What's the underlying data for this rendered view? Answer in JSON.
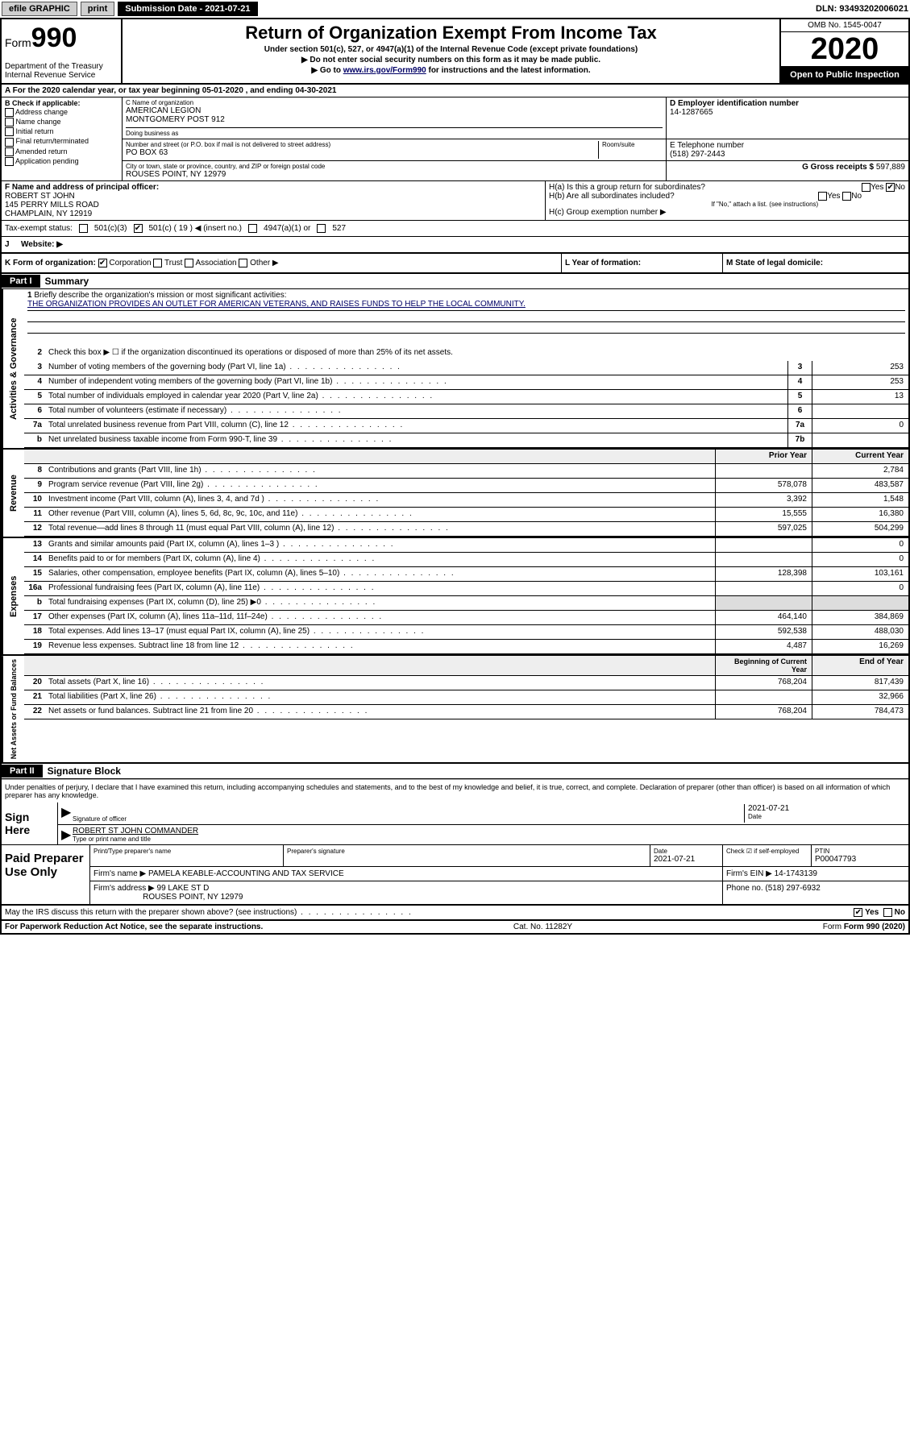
{
  "topbar": {
    "efile": "efile GRAPHIC",
    "print": "print",
    "sub_label": "Submission Date - 2021-07-21",
    "dln": "DLN: 93493202006021"
  },
  "header": {
    "form_label": "Form",
    "form_num": "990",
    "dept": "Department of the Treasury",
    "irs": "Internal Revenue Service",
    "title": "Return of Organization Exempt From Income Tax",
    "sub1": "Under section 501(c), 527, or 4947(a)(1) of the Internal Revenue Code (except private foundations)",
    "sub2": "▶ Do not enter social security numbers on this form as it may be made public.",
    "sub3_pre": "▶ Go to ",
    "sub3_link": "www.irs.gov/Form990",
    "sub3_post": " for instructions and the latest information.",
    "omb": "OMB No. 1545-0047",
    "year": "2020",
    "open": "Open to Public Inspection"
  },
  "period": "A For the 2020 calendar year, or tax year beginning 05-01-2020   , and ending 04-30-2021",
  "colB": {
    "hdr": "B Check if applicable:",
    "opts": [
      "Address change",
      "Name change",
      "Initial return",
      "Final return/terminated",
      "Amended return",
      "Application pending"
    ]
  },
  "colC": {
    "name_hdr": "C Name of organization",
    "name1": "AMERICAN LEGION",
    "name2": "MONTGOMERY POST 912",
    "dba": "Doing business as",
    "addr_hdr": "Number and street (or P.O. box if mail is not delivered to street address)",
    "room": "Room/suite",
    "addr": "PO BOX 63",
    "city_hdr": "City or town, state or province, country, and ZIP or foreign postal code",
    "city": "ROUSES POINT, NY  12979"
  },
  "colD": {
    "ein_hdr": "D Employer identification number",
    "ein": "14-1287665",
    "tel_hdr": "E Telephone number",
    "tel": "(518) 297-2443",
    "gross_hdr": "G Gross receipts $",
    "gross": "597,889"
  },
  "rowF": {
    "hdr": "F Name and address of principal officer:",
    "name": "ROBERT ST JOHN",
    "addr1": "145 PERRY MILLS ROAD",
    "addr2": "CHAMPLAIN, NY  12919"
  },
  "rowH": {
    "ha": "H(a)  Is this a group return for subordinates?",
    "hb": "H(b)  Are all subordinates included?",
    "hb_note": "If \"No,\" attach a list. (see instructions)",
    "hc": "H(c)  Group exemption number ▶",
    "yes": "Yes",
    "no": "No"
  },
  "tax_status": {
    "label": "Tax-exempt status:",
    "opt1": "501(c)(3)",
    "opt2": "501(c) ( 19 ) ◀ (insert no.)",
    "opt3": "4947(a)(1) or",
    "opt4": "527"
  },
  "website": {
    "j": "J",
    "label": "Website: ▶"
  },
  "rowK": {
    "k": "K Form of organization:",
    "corp": "Corporation",
    "trust": "Trust",
    "assoc": "Association",
    "other": "Other ▶",
    "l": "L Year of formation:",
    "m": "M State of legal domicile:"
  },
  "part1": {
    "tag": "Part I",
    "title": "Summary"
  },
  "summary": {
    "q1": "Briefly describe the organization's mission or most significant activities:",
    "mission": "THE ORGANIZATION PROVIDES AN OUTLET FOR AMERICAN VETERANS, AND RAISES FUNDS TO HELP THE LOCAL COMMUNITY.",
    "q2": "Check this box ▶ ☐  if the organization discontinued its operations or disposed of more than 25% of its net assets.",
    "rows_gov": [
      {
        "n": "3",
        "d": "Number of voting members of the governing body (Part VI, line 1a)",
        "b": "3",
        "v": "253"
      },
      {
        "n": "4",
        "d": "Number of independent voting members of the governing body (Part VI, line 1b)",
        "b": "4",
        "v": "253"
      },
      {
        "n": "5",
        "d": "Total number of individuals employed in calendar year 2020 (Part V, line 2a)",
        "b": "5",
        "v": "13"
      },
      {
        "n": "6",
        "d": "Total number of volunteers (estimate if necessary)",
        "b": "6",
        "v": ""
      },
      {
        "n": "7a",
        "d": "Total unrelated business revenue from Part VIII, column (C), line 12",
        "b": "7a",
        "v": "0"
      },
      {
        "n": "b",
        "d": "Net unrelated business taxable income from Form 990-T, line 39",
        "b": "7b",
        "v": ""
      }
    ],
    "col_prior": "Prior Year",
    "col_current": "Current Year",
    "rows_rev": [
      {
        "n": "8",
        "d": "Contributions and grants (Part VIII, line 1h)",
        "p": "",
        "c": "2,784"
      },
      {
        "n": "9",
        "d": "Program service revenue (Part VIII, line 2g)",
        "p": "578,078",
        "c": "483,587"
      },
      {
        "n": "10",
        "d": "Investment income (Part VIII, column (A), lines 3, 4, and 7d )",
        "p": "3,392",
        "c": "1,548"
      },
      {
        "n": "11",
        "d": "Other revenue (Part VIII, column (A), lines 5, 6d, 8c, 9c, 10c, and 11e)",
        "p": "15,555",
        "c": "16,380"
      },
      {
        "n": "12",
        "d": "Total revenue—add lines 8 through 11 (must equal Part VIII, column (A), line 12)",
        "p": "597,025",
        "c": "504,299"
      }
    ],
    "rows_exp": [
      {
        "n": "13",
        "d": "Grants and similar amounts paid (Part IX, column (A), lines 1–3 )",
        "p": "",
        "c": "0"
      },
      {
        "n": "14",
        "d": "Benefits paid to or for members (Part IX, column (A), line 4)",
        "p": "",
        "c": "0"
      },
      {
        "n": "15",
        "d": "Salaries, other compensation, employee benefits (Part IX, column (A), lines 5–10)",
        "p": "128,398",
        "c": "103,161"
      },
      {
        "n": "16a",
        "d": "Professional fundraising fees (Part IX, column (A), line 11e)",
        "p": "",
        "c": "0"
      },
      {
        "n": "b",
        "d": "Total fundraising expenses (Part IX, column (D), line 25) ▶0",
        "p": "shade",
        "c": "shade"
      },
      {
        "n": "17",
        "d": "Other expenses (Part IX, column (A), lines 11a–11d, 11f–24e)",
        "p": "464,140",
        "c": "384,869"
      },
      {
        "n": "18",
        "d": "Total expenses. Add lines 13–17 (must equal Part IX, column (A), line 25)",
        "p": "592,538",
        "c": "488,030"
      },
      {
        "n": "19",
        "d": "Revenue less expenses. Subtract line 18 from line 12",
        "p": "4,487",
        "c": "16,269"
      }
    ],
    "col_begin": "Beginning of Current Year",
    "col_end": "End of Year",
    "rows_net": [
      {
        "n": "20",
        "d": "Total assets (Part X, line 16)",
        "p": "768,204",
        "c": "817,439"
      },
      {
        "n": "21",
        "d": "Total liabilities (Part X, line 26)",
        "p": "",
        "c": "32,966"
      },
      {
        "n": "22",
        "d": "Net assets or fund balances. Subtract line 21 from line 20",
        "p": "768,204",
        "c": "784,473"
      }
    ]
  },
  "side_labels": {
    "gov": "Activities & Governance",
    "rev": "Revenue",
    "exp": "Expenses",
    "net": "Net Assets or Fund Balances"
  },
  "part2": {
    "tag": "Part II",
    "title": "Signature Block"
  },
  "perjury": "Under penalties of perjury, I declare that I have examined this return, including accompanying schedules and statements, and to the best of my knowledge and belief, it is true, correct, and complete. Declaration of preparer (other than officer) is based on all information of which preparer has any knowledge.",
  "sign": {
    "label": "Sign Here",
    "sig_officer": "Signature of officer",
    "date": "2021-07-21",
    "date_lbl": "Date",
    "name": "ROBERT ST JOHN  COMMANDER",
    "name_lbl": "Type or print name and title"
  },
  "prep": {
    "label": "Paid Preparer Use Only",
    "h1": "Print/Type preparer's name",
    "h2": "Preparer's signature",
    "h3": "Date",
    "h3v": "2021-07-21",
    "h4": "Check ☑ if self-employed",
    "h5": "PTIN",
    "ptin": "P00047793",
    "firm_name_lbl": "Firm's name    ▶",
    "firm_name": "PAMELA KEABLE-ACCOUNTING AND TAX SERVICE",
    "firm_ein_lbl": "Firm's EIN ▶",
    "firm_ein": "14-1743139",
    "firm_addr_lbl": "Firm's address ▶",
    "firm_addr1": "99 LAKE ST D",
    "firm_addr2": "ROUSES POINT, NY  12979",
    "phone_lbl": "Phone no.",
    "phone": "(518) 297-6932"
  },
  "discuss": "May the IRS discuss this return with the preparer shown above? (see instructions)",
  "footer": {
    "pra": "For Paperwork Reduction Act Notice, see the separate instructions.",
    "cat": "Cat. No. 11282Y",
    "form": "Form 990 (2020)"
  }
}
